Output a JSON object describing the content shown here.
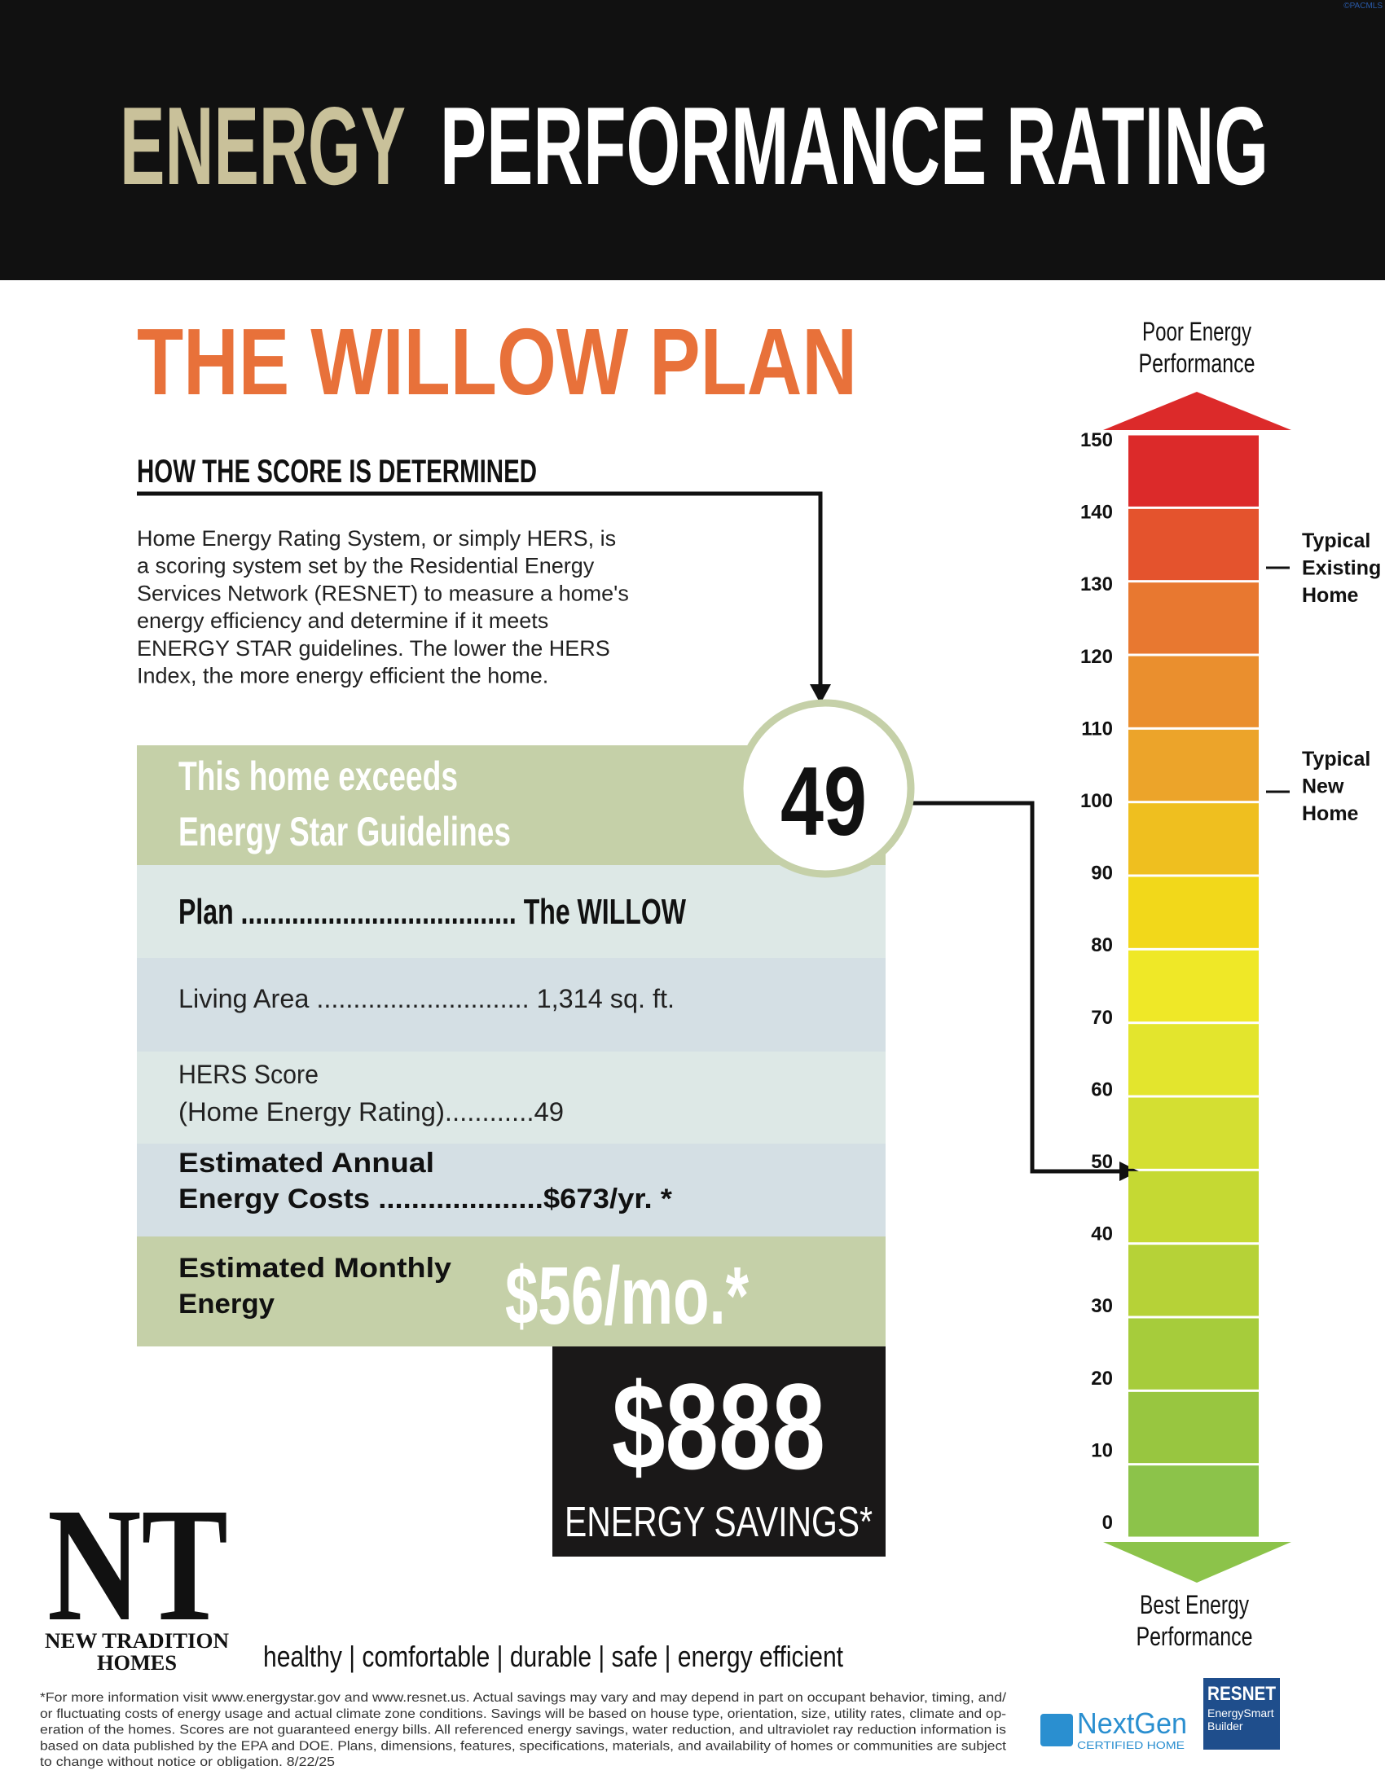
{
  "header": {
    "title_highlight": "ENERGY",
    "title_rest": "PERFORMANCE RATING",
    "copyright": "©PACMLS"
  },
  "plan_title": "THE WILLOW PLAN",
  "score_section": {
    "heading": "HOW THE SCORE IS DETERMINED",
    "paragraph_lines": [
      "Home Energy Rating System, or simply HERS, is",
      "a scoring system set by the Residential Energy",
      "Services Network (RESNET) to measure a home's",
      "energy efficiency and determine if it meets",
      "ENERGY STAR guidelines. The lower the HERS",
      "Index, the more energy efficient the home."
    ]
  },
  "summary": {
    "banner_lines": [
      "This home exceeds",
      "Energy Star Guidelines"
    ],
    "score": "49",
    "plan": "Plan ...................................... The WILLOW",
    "living_area": "Living Area ............................. 1,314 sq. ft.",
    "hers_lines": [
      "HERS Score",
      "(Home Energy Rating)............49"
    ],
    "annual_lines": [
      "Estimated Annual",
      "Energy Costs ....................$673/yr. *"
    ],
    "monthly_lines": [
      "Estimated Monthly",
      "Energy"
    ],
    "monthly_value": "$56/mo.*"
  },
  "savings": {
    "amount": "$888",
    "label": "ENERGY SAVINGS*"
  },
  "scale": {
    "top_label": [
      "Poor Energy",
      "Performance"
    ],
    "bottom_label": [
      "Best Energy",
      "Performance"
    ],
    "ticks": [
      150,
      140,
      130,
      120,
      110,
      100,
      90,
      80,
      70,
      60,
      50,
      40,
      30,
      20,
      10,
      0
    ],
    "markers": [
      [
        "Typical",
        "Existing",
        "Home"
      ],
      [
        "Typical",
        "New",
        "Home"
      ]
    ]
  },
  "footer": {
    "logo": "NT",
    "brand": [
      "NEW TRADITION",
      "HOMES"
    ],
    "tagline": "healthy | comfortable | durable | safe | energy efficient",
    "footnote_lines": [
      "*For more information visit www.energystar.gov and www.resnet.us.  Actual savings may vary and may depend in part on occupant behavior, timing, and/",
      "or fluctuating costs of energy usage and actual climate zone conditions. Savings will be based on house type, orientation, size, utility rates, climate and op-",
      "eration of the homes.  Scores are not guaranteed energy bills. All referenced energy savings, water reduction, and ultraviolet ray reduction information is",
      "based on data published by the EPA and DOE. Plans, dimensions, features, specifications, materials, and availability of homes or communities are subject",
      "to change without notice or obligation. 8/22/25"
    ],
    "nextgen": "NextGen",
    "nextgen_sub": "CERTIFIED HOME",
    "resnet": "RESNET",
    "resnet_sub": [
      "EnergySmart",
      "Builder"
    ]
  }
}
